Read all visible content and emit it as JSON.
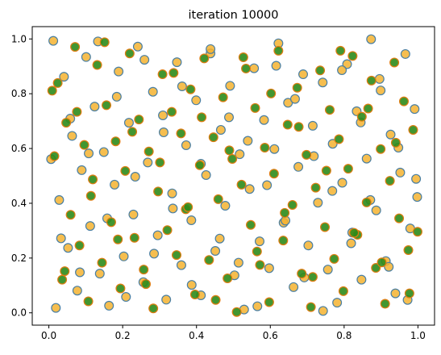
{
  "chart_data": {
    "type": "scatter",
    "title": "iteration 10000",
    "xlabel": "",
    "ylabel": "",
    "xlim": [
      -0.045,
      1.045
    ],
    "ylim": [
      -0.045,
      1.045
    ],
    "x_ticks": [
      0.0,
      0.2,
      0.4,
      0.6,
      0.8,
      1.0
    ],
    "y_ticks": [
      0.0,
      0.2,
      0.4,
      0.6,
      0.8,
      1.0
    ],
    "x_tick_labels": [
      "0.0",
      "0.2",
      "0.4",
      "0.6",
      "0.8",
      "1.0"
    ],
    "y_tick_labels": [
      "0.0",
      "0.2",
      "0.4",
      "0.6",
      "0.8",
      "1.0"
    ],
    "grid": false,
    "legend": "none",
    "series": [
      {
        "marker": "circle",
        "color": "#f4b330",
        "edge_color": "#4a7fa3",
        "description_of_points": "approx. 500 points uniformly distributed over [0,1]x[0,1]",
        "x": [
          0.012,
          0.019,
          0.028,
          0.041,
          0.052,
          0.063,
          0.077,
          0.089,
          0.101,
          0.112,
          0.124,
          0.138,
          0.149,
          0.163,
          0.178,
          0.189,
          0.203,
          0.217,
          0.229,
          0.241,
          0.256,
          0.268,
          0.282,
          0.295,
          0.309,
          0.318,
          0.334,
          0.347,
          0.359,
          0.372,
          0.386,
          0.399,
          0.412,
          0.426,
          0.438,
          0.451,
          0.466,
          0.478,
          0.491,
          0.503,
          0.517,
          0.529,
          0.544,
          0.556,
          0.571,
          0.583,
          0.597,
          0.611,
          0.622,
          0.636,
          0.648,
          0.663,
          0.676,
          0.689,
          0.703,
          0.715,
          0.729,
          0.742,
          0.756,
          0.769,
          0.781,
          0.795,
          0.808,
          0.822,
          0.834,
          0.847,
          0.861,
          0.873,
          0.887,
          0.899,
          0.913,
          0.926,
          0.939,
          0.952,
          0.966,
          0.979,
          0.991,
          0.998,
          0.006,
          0.033,
          0.058,
          0.084,
          0.108,
          0.133,
          0.158,
          0.184,
          0.209,
          0.234,
          0.259,
          0.285,
          0.311,
          0.336,
          0.361,
          0.387,
          0.412,
          0.438,
          0.463,
          0.488,
          0.514,
          0.539,
          0.565,
          0.591,
          0.616,
          0.641,
          0.667,
          0.692,
          0.718,
          0.743,
          0.768,
          0.794,
          0.819,
          0.845,
          0.871,
          0.896,
          0.921,
          0.947,
          0.972,
          0.995
        ],
        "y": [
          0.993,
          0.018,
          0.412,
          0.862,
          0.237,
          0.646,
          0.081,
          0.521,
          0.934,
          0.317,
          0.753,
          0.143,
          0.587,
          0.026,
          0.468,
          0.881,
          0.206,
          0.694,
          0.359,
          0.972,
          0.112,
          0.549,
          0.807,
          0.283,
          0.721,
          0.048,
          0.436,
          0.915,
          0.174,
          0.612,
          0.338,
          0.776,
          0.064,
          0.503,
          0.947,
          0.226,
          0.668,
          0.391,
          0.829,
          0.137,
          0.579,
          0.012,
          0.452,
          0.893,
          0.261,
          0.704,
          0.163,
          0.598,
          0.984,
          0.329,
          0.767,
          0.094,
          0.533,
          0.871,
          0.246,
          0.683,
          0.402,
          0.841,
          0.158,
          0.617,
          0.037,
          0.475,
          0.908,
          0.293,
          0.736,
          0.121,
          0.563,
          0.999,
          0.374,
          0.812,
          0.189,
          0.651,
          0.071,
          0.512,
          0.945,
          0.308,
          0.744,
          0.423,
          0.561,
          0.272,
          0.709,
          0.148,
          0.582,
          0.991,
          0.345,
          0.789,
          0.058,
          0.497,
          0.924,
          0.216,
          0.659,
          0.381,
          0.827,
          0.102,
          0.544,
          0.963,
          0.271,
          0.714,
          0.183,
          0.628,
          0.024,
          0.466,
          0.902,
          0.337,
          0.781,
          0.129,
          0.572,
          0.007,
          0.445,
          0.886,
          0.254,
          0.695,
          0.412,
          0.854,
          0.168,
          0.603,
          0.047,
          0.489
        ]
      },
      {
        "marker": "circle",
        "color": "#2e8b1a",
        "edge_color": "#e07c10",
        "description_of_points": "approx. 500 points uniformly distributed over [0,1]x[0,1]",
        "x": [
          0.015,
          0.024,
          0.036,
          0.047,
          0.059,
          0.071,
          0.083,
          0.096,
          0.107,
          0.119,
          0.131,
          0.144,
          0.156,
          0.169,
          0.181,
          0.194,
          0.207,
          0.219,
          0.232,
          0.244,
          0.257,
          0.271,
          0.283,
          0.296,
          0.308,
          0.321,
          0.333,
          0.346,
          0.358,
          0.371,
          0.384,
          0.396,
          0.409,
          0.421,
          0.434,
          0.446,
          0.459,
          0.472,
          0.484,
          0.497,
          0.509,
          0.522,
          0.534,
          0.547,
          0.559,
          0.572,
          0.585,
          0.597,
          0.61,
          0.622,
          0.635,
          0.647,
          0.66,
          0.673,
          0.685,
          0.698,
          0.71,
          0.723,
          0.735,
          0.748,
          0.761,
          0.773,
          0.786,
          0.798,
          0.811,
          0.823,
          0.836,
          0.848,
          0.861,
          0.874,
          0.886,
          0.899,
          0.911,
          0.924,
          0.936,
          0.949,
          0.962,
          0.974,
          0.987,
          0.999,
          0.009,
          0.043,
          0.076,
          0.114,
          0.151,
          0.187,
          0.226,
          0.263,
          0.301,
          0.338,
          0.377,
          0.414,
          0.452,
          0.489,
          0.527,
          0.564,
          0.602,
          0.639,
          0.677,
          0.715,
          0.752,
          0.79,
          0.827,
          0.865,
          0.902,
          0.94,
          0.977
        ],
        "y": [
          0.572,
          0.839,
          0.121,
          0.694,
          0.358,
          0.971,
          0.246,
          0.613,
          0.042,
          0.487,
          0.905,
          0.183,
          0.758,
          0.331,
          0.626,
          0.089,
          0.518,
          0.947,
          0.274,
          0.706,
          0.158,
          0.589,
          0.016,
          0.443,
          0.871,
          0.302,
          0.734,
          0.211,
          0.655,
          0.378,
          0.816,
          0.067,
          0.539,
          0.929,
          0.193,
          0.641,
          0.415,
          0.787,
          0.126,
          0.562,
          0.003,
          0.468,
          0.892,
          0.321,
          0.748,
          0.175,
          0.603,
          0.039,
          0.508,
          0.957,
          0.264,
          0.687,
          0.394,
          0.822,
          0.143,
          0.577,
          0.021,
          0.457,
          0.885,
          0.313,
          0.741,
          0.197,
          0.634,
          0.079,
          0.526,
          0.938,
          0.285,
          0.716,
          0.403,
          0.848,
          0.164,
          0.598,
          0.033,
          0.482,
          0.914,
          0.345,
          0.772,
          0.229,
          0.668,
          0.296,
          0.811,
          0.152,
          0.734,
          0.427,
          0.988,
          0.268,
          0.661,
          0.105,
          0.549,
          0.876,
          0.386,
          0.714,
          0.047,
          0.593,
          0.933,
          0.224,
          0.801,
          0.365,
          0.679,
          0.131,
          0.519,
          0.957,
          0.292,
          0.746,
          0.184,
          0.621,
          0.071
        ]
      }
    ]
  }
}
